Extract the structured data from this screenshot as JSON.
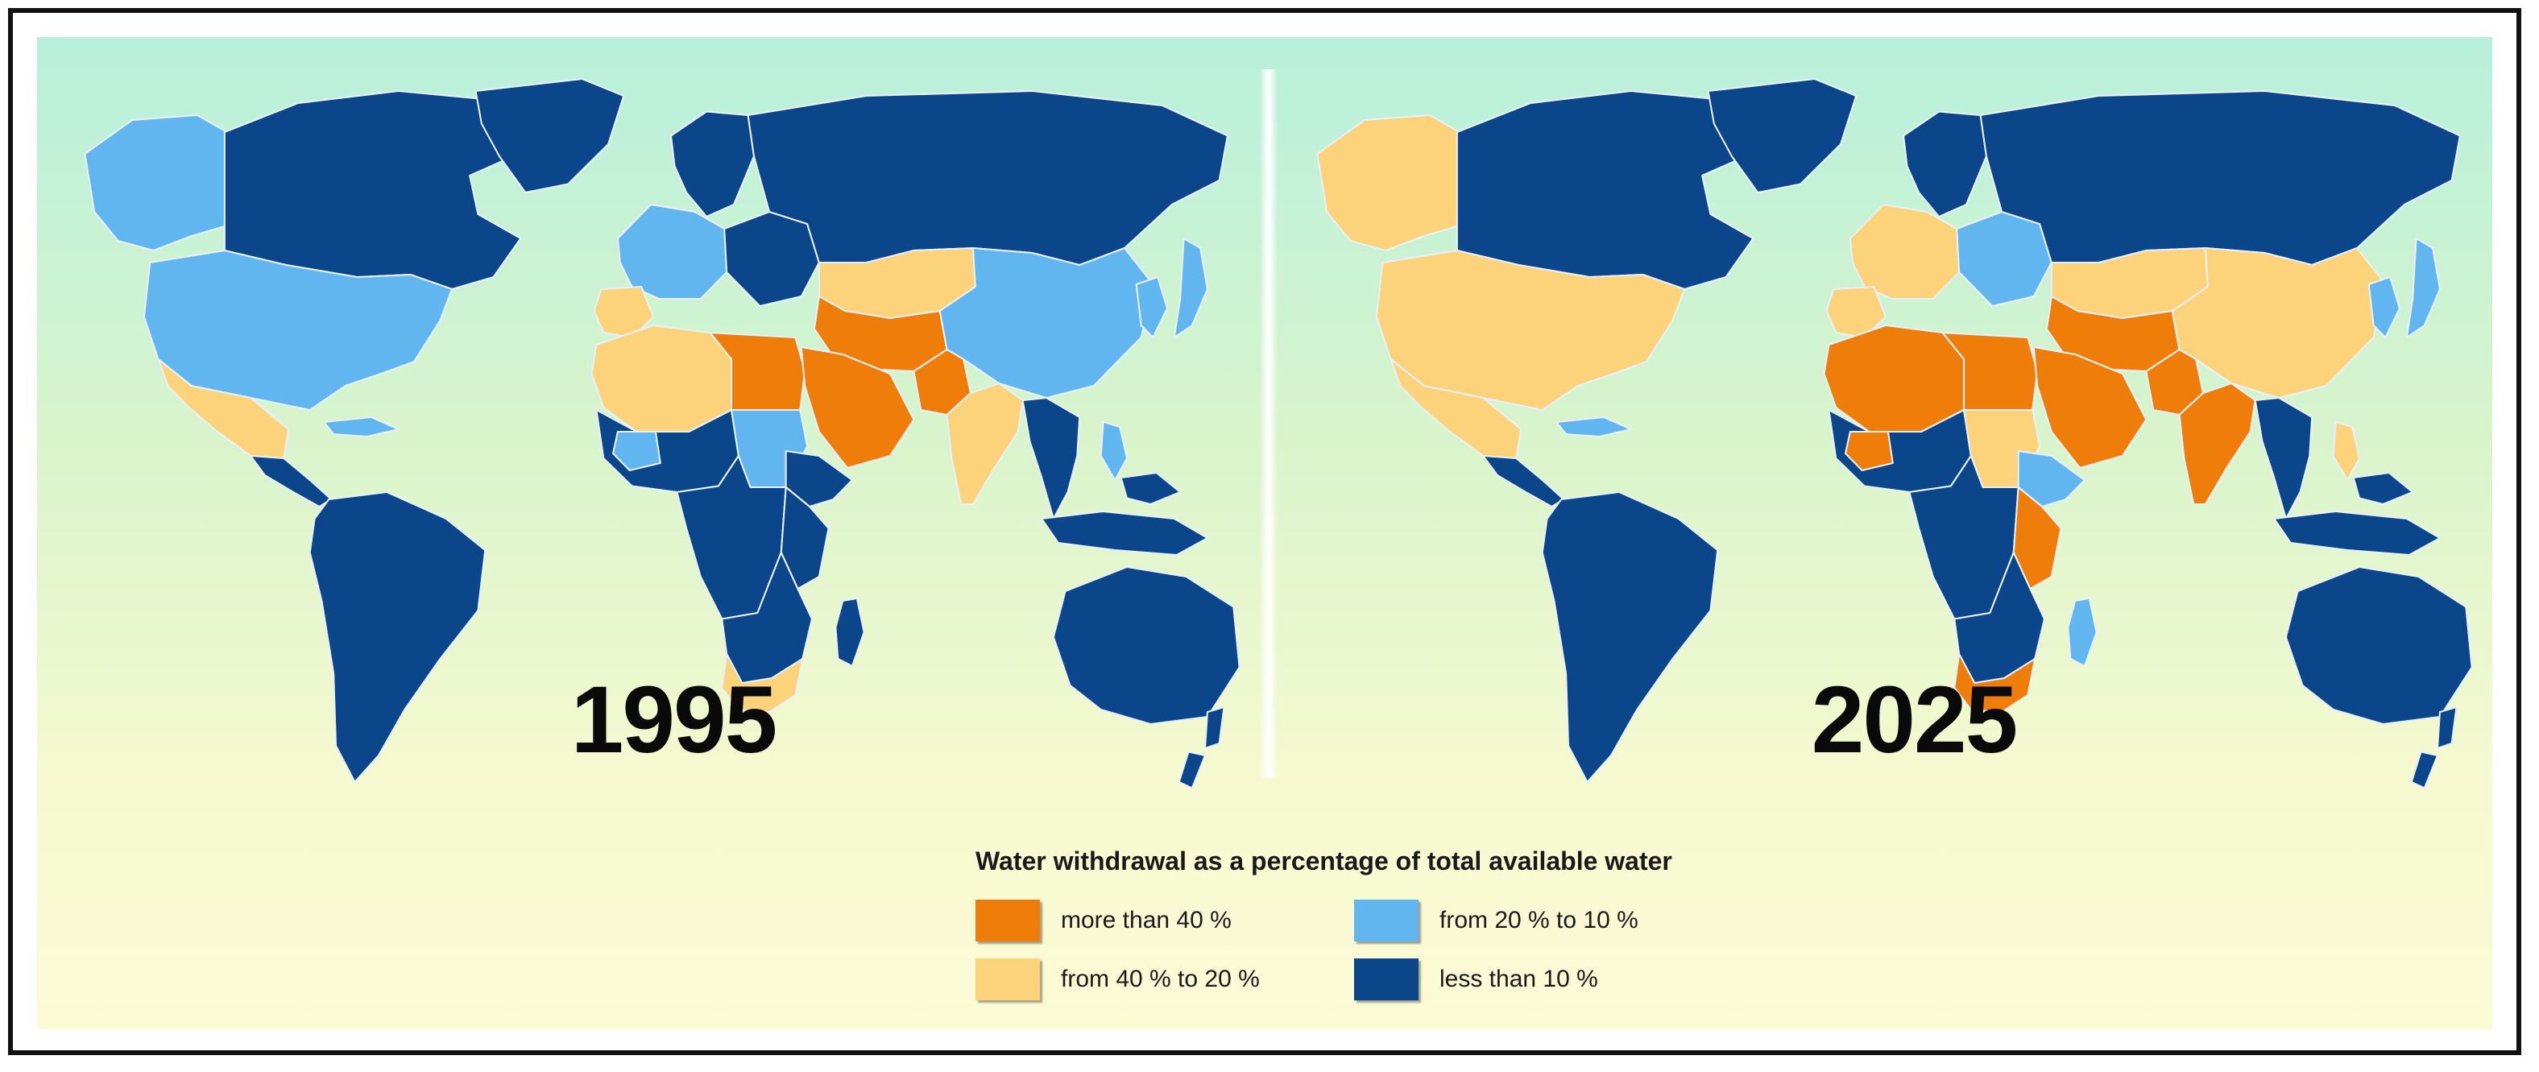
{
  "colors": {
    "more_than_40": "#ef7d0a",
    "from_40_to_20": "#fcd27a",
    "from_20_to_10": "#62b6f0",
    "less_than_10": "#0c468a",
    "border": "#e8f0f8"
  },
  "maps": [
    {
      "year": "1995",
      "regions": {
        "canada": "less_than_10",
        "alaska": "from_20_to_10",
        "greenland": "less_than_10",
        "usa": "from_20_to_10",
        "mexico": "from_40_to_20",
        "central_america": "less_than_10",
        "cuba": "from_20_to_10",
        "south_america": "less_than_10",
        "scandinavia": "less_than_10",
        "western_europe": "from_20_to_10",
        "iberia": "from_40_to_20",
        "eastern_europe": "less_than_10",
        "russia": "less_than_10",
        "central_asia": "from_40_to_20",
        "iran_afghanistan": "more_than_40",
        "china": "from_20_to_10",
        "korea_japan": "from_20_to_10",
        "north_africa_west": "from_40_to_20",
        "north_africa_east": "more_than_40",
        "arabia": "more_than_40",
        "pakistan": "more_than_40",
        "india": "from_40_to_20",
        "southeast_asia": "less_than_10",
        "philippines": "from_20_to_10",
        "west_africa": "less_than_10",
        "sahel_west": "from_20_to_10",
        "sudan": "from_20_to_10",
        "central_africa": "less_than_10",
        "horn_africa": "less_than_10",
        "east_africa": "less_than_10",
        "southern_africa": "less_than_10",
        "south_africa": "from_40_to_20",
        "madagascar": "less_than_10",
        "indonesia": "less_than_10",
        "australia": "less_than_10",
        "new_zealand": "less_than_10"
      }
    },
    {
      "year": "2025",
      "regions": {
        "canada": "less_than_10",
        "alaska": "from_40_to_20",
        "greenland": "less_than_10",
        "usa": "from_40_to_20",
        "mexico": "from_40_to_20",
        "central_america": "less_than_10",
        "cuba": "from_20_to_10",
        "south_america": "less_than_10",
        "scandinavia": "less_than_10",
        "western_europe": "from_40_to_20",
        "iberia": "from_40_to_20",
        "eastern_europe": "from_20_to_10",
        "russia": "less_than_10",
        "central_asia": "from_40_to_20",
        "iran_afghanistan": "more_than_40",
        "china": "from_40_to_20",
        "korea_japan": "from_20_to_10",
        "north_africa_west": "more_than_40",
        "north_africa_east": "more_than_40",
        "arabia": "more_than_40",
        "pakistan": "more_than_40",
        "india": "more_than_40",
        "southeast_asia": "less_than_10",
        "philippines": "from_40_to_20",
        "west_africa": "less_than_10",
        "sahel_west": "more_than_40",
        "sudan": "from_40_to_20",
        "central_africa": "less_than_10",
        "horn_africa": "from_20_to_10",
        "east_africa": "more_than_40",
        "southern_africa": "less_than_10",
        "south_africa": "more_than_40",
        "madagascar": "from_20_to_10",
        "indonesia": "less_than_10",
        "australia": "less_than_10",
        "new_zealand": "less_than_10"
      }
    }
  ],
  "legend": {
    "title": "Water withdrawal as a percentage of total available water",
    "items": [
      {
        "key": "more_than_40",
        "label": "more than 40 %"
      },
      {
        "key": "from_20_to_10",
        "label": "from 20 % to 10 %"
      },
      {
        "key": "from_40_to_20",
        "label": "from 40 % to 20 %"
      },
      {
        "key": "less_than_10",
        "label": "less than 10 %"
      }
    ]
  }
}
